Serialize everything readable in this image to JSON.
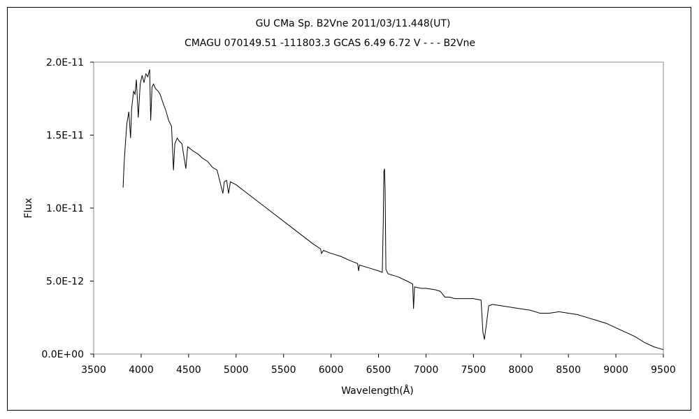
{
  "chart_data": {
    "type": "line",
    "title": "GU CMa    Sp. B2Vne    2011/03/11.448(UT)",
    "subtitle": "CMAGU 070149.51 -111803.3 GCAS 6.49 6.72  V - - - B2Vne",
    "xlabel": "Wavelength(Å)",
    "ylabel": "Flux",
    "xlim": [
      3500,
      9500
    ],
    "ylim": [
      0,
      2e-11
    ],
    "x_ticks": [
      "3500",
      "4000",
      "4500",
      "5000",
      "5500",
      "6000",
      "6500",
      "7000",
      "7500",
      "8000",
      "8500",
      "9000",
      "9500"
    ],
    "y_ticks": [
      "0.0E+00",
      "5.0E-12",
      "1.0E-11",
      "1.5E-11",
      "2.0E-11"
    ],
    "grid": false,
    "series": [
      {
        "values": [
          [
            3810,
            1.14e-11
          ],
          [
            3820,
            1.3e-11
          ],
          [
            3835,
            1.45e-11
          ],
          [
            3850,
            1.58e-11
          ],
          [
            3870,
            1.66e-11
          ],
          [
            3889,
            1.48e-11
          ],
          [
            3900,
            1.68e-11
          ],
          [
            3920,
            1.8e-11
          ],
          [
            3935,
            1.78e-11
          ],
          [
            3950,
            1.88e-11
          ],
          [
            3970,
            1.62e-11
          ],
          [
            3990,
            1.85e-11
          ],
          [
            4010,
            1.91e-11
          ],
          [
            4030,
            1.86e-11
          ],
          [
            4050,
            1.92e-11
          ],
          [
            4070,
            1.9e-11
          ],
          [
            4090,
            1.95e-11
          ],
          [
            4101,
            1.6e-11
          ],
          [
            4115,
            1.83e-11
          ],
          [
            4130,
            1.85e-11
          ],
          [
            4150,
            1.82e-11
          ],
          [
            4180,
            1.8e-11
          ],
          [
            4200,
            1.78e-11
          ],
          [
            4230,
            1.72e-11
          ],
          [
            4260,
            1.67e-11
          ],
          [
            4290,
            1.6e-11
          ],
          [
            4320,
            1.56e-11
          ],
          [
            4341,
            1.26e-11
          ],
          [
            4355,
            1.44e-11
          ],
          [
            4380,
            1.48e-11
          ],
          [
            4400,
            1.46e-11
          ],
          [
            4430,
            1.44e-11
          ],
          [
            4471,
            1.27e-11
          ],
          [
            4490,
            1.42e-11
          ],
          [
            4550,
            1.39e-11
          ],
          [
            4600,
            1.37e-11
          ],
          [
            4650,
            1.34e-11
          ],
          [
            4700,
            1.32e-11
          ],
          [
            4750,
            1.28e-11
          ],
          [
            4800,
            1.26e-11
          ],
          [
            4861,
            1.1e-11
          ],
          [
            4875,
            1.18e-11
          ],
          [
            4900,
            1.19e-11
          ],
          [
            4921,
            1.1e-11
          ],
          [
            4940,
            1.18e-11
          ],
          [
            5000,
            1.16e-11
          ],
          [
            5100,
            1.11e-11
          ],
          [
            5200,
            1.06e-11
          ],
          [
            5300,
            1.01e-11
          ],
          [
            5400,
            9.6e-12
          ],
          [
            5500,
            9.1e-12
          ],
          [
            5600,
            8.6e-12
          ],
          [
            5700,
            8.1e-12
          ],
          [
            5800,
            7.6e-12
          ],
          [
            5890,
            7.2e-12
          ],
          [
            5900,
            6.9e-12
          ],
          [
            5920,
            7.1e-12
          ],
          [
            6000,
            6.9e-12
          ],
          [
            6100,
            6.7e-12
          ],
          [
            6200,
            6.4e-12
          ],
          [
            6280,
            6.2e-12
          ],
          [
            6290,
            5.7e-12
          ],
          [
            6300,
            6.1e-12
          ],
          [
            6400,
            5.9e-12
          ],
          [
            6500,
            5.7e-12
          ],
          [
            6540,
            5.6e-12
          ],
          [
            6550,
            9e-12
          ],
          [
            6557,
            1.25e-11
          ],
          [
            6563,
            1.27e-11
          ],
          [
            6570,
            1.12e-11
          ],
          [
            6578,
            5.8e-12
          ],
          [
            6600,
            5.5e-12
          ],
          [
            6700,
            5.3e-12
          ],
          [
            6800,
            5e-12
          ],
          [
            6860,
            4.8e-12
          ],
          [
            6869,
            3.1e-12
          ],
          [
            6880,
            4.6e-12
          ],
          [
            6950,
            4.5e-12
          ],
          [
            7000,
            4.5e-12
          ],
          [
            7100,
            4.4e-12
          ],
          [
            7150,
            4.3e-12
          ],
          [
            7200,
            3.9e-12
          ],
          [
            7250,
            3.9e-12
          ],
          [
            7300,
            3.8e-12
          ],
          [
            7400,
            3.8e-12
          ],
          [
            7500,
            3.8e-12
          ],
          [
            7580,
            3.7e-12
          ],
          [
            7600,
            1.5e-12
          ],
          [
            7615,
            1e-12
          ],
          [
            7640,
            2.2e-12
          ],
          [
            7660,
            3.3e-12
          ],
          [
            7700,
            3.4e-12
          ],
          [
            7800,
            3.3e-12
          ],
          [
            7900,
            3.2e-12
          ],
          [
            8000,
            3.1e-12
          ],
          [
            8100,
            3e-12
          ],
          [
            8200,
            2.8e-12
          ],
          [
            8300,
            2.8e-12
          ],
          [
            8400,
            2.9e-12
          ],
          [
            8500,
            2.8e-12
          ],
          [
            8600,
            2.7e-12
          ],
          [
            8700,
            2.5e-12
          ],
          [
            8800,
            2.3e-12
          ],
          [
            8900,
            2.1e-12
          ],
          [
            9000,
            1.8e-12
          ],
          [
            9100,
            1.5e-12
          ],
          [
            9200,
            1.2e-12
          ],
          [
            9300,
            8e-13
          ],
          [
            9400,
            5e-13
          ],
          [
            9500,
            3e-13
          ]
        ]
      }
    ]
  }
}
